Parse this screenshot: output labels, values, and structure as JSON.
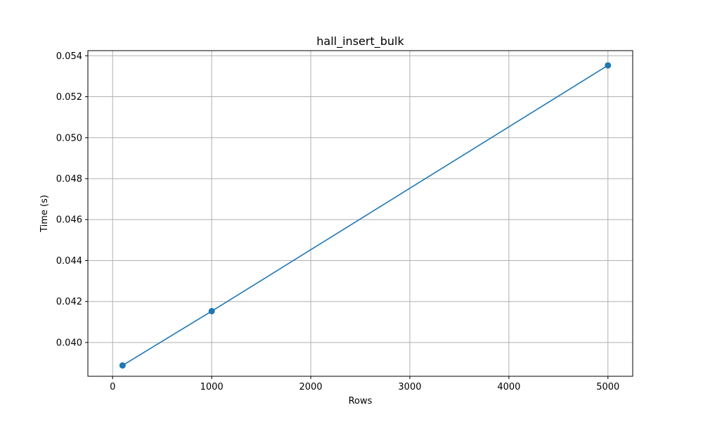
{
  "chart_data": {
    "type": "line",
    "title": "hall_insert_bulk",
    "xlabel": "Rows",
    "ylabel": "Time (s)",
    "xlim": [
      -250,
      5250
    ],
    "ylim": [
      0.03835,
      0.05425
    ],
    "x_ticks": [
      0,
      1000,
      2000,
      3000,
      4000,
      5000
    ],
    "x_tick_labels": [
      "0",
      "1000",
      "2000",
      "3000",
      "4000",
      "5000"
    ],
    "y_ticks": [
      0.04,
      0.042,
      0.044,
      0.046,
      0.048,
      0.05,
      0.052,
      0.054
    ],
    "y_tick_labels": [
      "0.040",
      "0.042",
      "0.044",
      "0.046",
      "0.048",
      "0.050",
      "0.052",
      "0.054"
    ],
    "grid": true,
    "series": [
      {
        "x": [
          100,
          1000,
          5000
        ],
        "values": [
          0.03888,
          0.04153,
          0.05353
        ],
        "color": "#1f77b4",
        "marker": "circle"
      }
    ]
  }
}
